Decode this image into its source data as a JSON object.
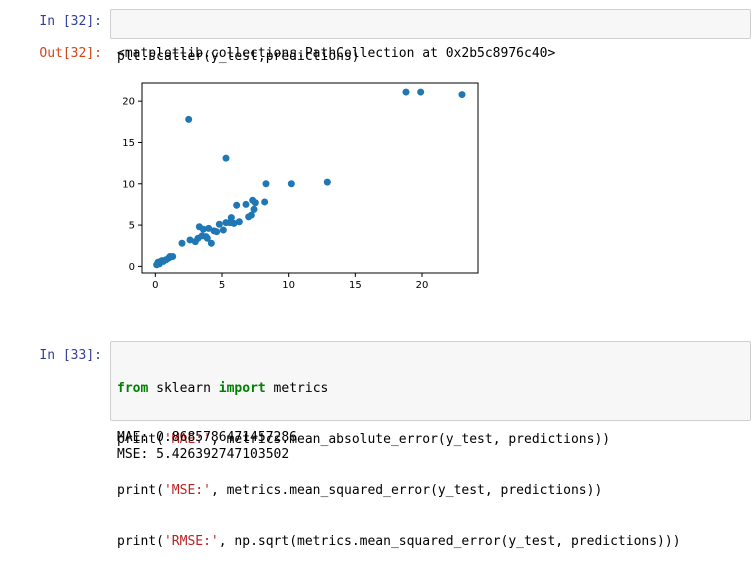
{
  "cells": [
    {
      "prompt": "In [32]:",
      "code_lines": [
        [
          "",
          "plt.scatter(y_test,predictions)",
          ""
        ]
      ],
      "out_prompt": "Out[32]:",
      "output_text": "<matplotlib.collections.PathCollection at 0x2b5c8976c40>"
    },
    {
      "prompt": "In [33]:",
      "code_lines": [
        [
          "from",
          " sklearn ",
          "import",
          " metrics"
        ],
        [
          "print(",
          "'MAE:'",
          ", metrics.mean_absolute_error(y_test, predictions))"
        ],
        [
          "print(",
          "'MSE:'",
          ", metrics.mean_squared_error(y_test, predictions))"
        ],
        [
          "print(",
          "'RMSE:'",
          ", np.sqrt(metrics.mean_squared_error(y_test, predictions)))"
        ]
      ],
      "output_lines": [
        "MAE: 0.8685786471457286",
        "MSE: 5.426392747103502"
      ]
    }
  ],
  "chart_data": {
    "type": "scatter",
    "title": "",
    "xlabel": "",
    "ylabel": "",
    "xlim": [
      -1,
      24.2
    ],
    "ylim": [
      -0.8,
      22.2
    ],
    "xticks": [
      0,
      5,
      10,
      15,
      20
    ],
    "yticks": [
      0,
      5,
      10,
      15,
      20
    ],
    "marker_color": "#1f77b4",
    "x": [
      0.1,
      0.2,
      0.3,
      0.4,
      0.5,
      0.6,
      0.8,
      1.0,
      1.1,
      1.3,
      2.0,
      2.6,
      3.0,
      3.2,
      3.3,
      3.5,
      3.6,
      3.8,
      3.9,
      4.0,
      4.2,
      4.4,
      4.6,
      4.8,
      5.1,
      5.3,
      5.6,
      5.7,
      5.9,
      6.1,
      6.3,
      6.8,
      7.0,
      7.2,
      7.3,
      7.4,
      7.5,
      8.2,
      8.3,
      10.2,
      12.9,
      2.5,
      5.3,
      18.8,
      19.9,
      23.0
    ],
    "y": [
      0.2,
      0.5,
      0.3,
      0.6,
      0.7,
      0.6,
      0.8,
      1.0,
      1.2,
      1.2,
      2.8,
      3.2,
      3.0,
      3.4,
      4.8,
      3.7,
      4.5,
      3.6,
      3.4,
      4.6,
      2.8,
      4.3,
      4.2,
      5.1,
      4.4,
      5.3,
      5.3,
      5.9,
      5.2,
      7.4,
      5.4,
      7.5,
      6.0,
      6.2,
      8.0,
      6.9,
      7.7,
      7.8,
      10.0,
      10.0,
      10.2,
      17.8,
      13.1,
      21.1,
      21.1,
      20.8
    ]
  }
}
